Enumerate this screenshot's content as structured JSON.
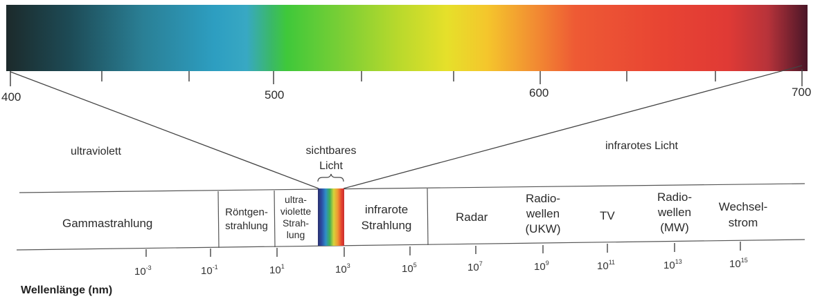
{
  "spectrum_scale": {
    "ticks": [
      "400",
      "500",
      "600",
      "700"
    ]
  },
  "visible_label": [
    "sichtbares",
    "Licht"
  ],
  "ultraviolet_label": "ultraviolett",
  "infrared_label": "infrarotes Licht",
  "bands": {
    "gamma": "Gammastrahlung",
    "xray": [
      "Röntgen-",
      "strahlung"
    ],
    "uv": [
      "ultra-",
      "violette",
      "Strah-",
      "lung"
    ],
    "ir": [
      "infrarote",
      "Strahlung"
    ],
    "radar": "Radar",
    "radio_ukw": [
      "Radio-",
      "wellen",
      "(UKW)"
    ],
    "tv": "TV",
    "radio_mw": [
      "Radio-",
      "wellen",
      "(MW)"
    ],
    "ac": [
      "Wechsel-",
      "strom"
    ]
  },
  "wavelength_axis": {
    "base": "10",
    "exponents": [
      "-3",
      "-1",
      "1",
      "3",
      "5",
      "7",
      "9",
      "11",
      "13",
      "15"
    ]
  },
  "axis_title": "Wellenlänge (nm)"
}
